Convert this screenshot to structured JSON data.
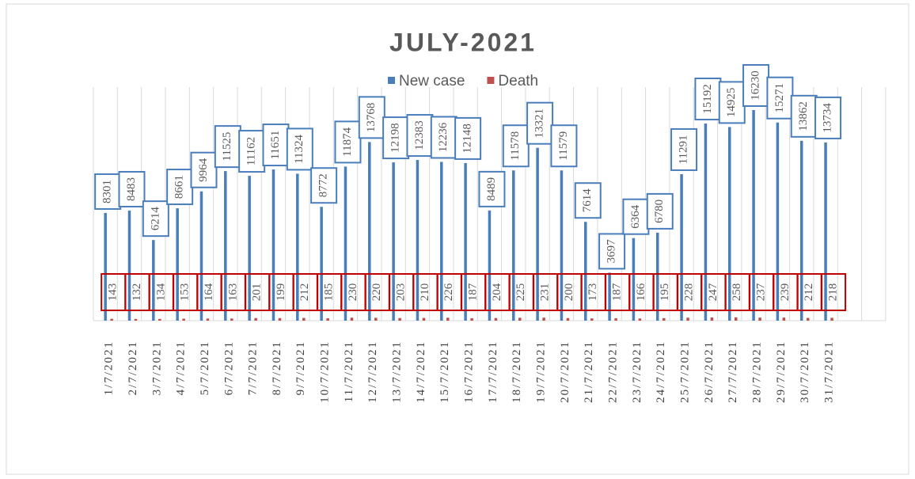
{
  "chart_data": {
    "type": "bar",
    "title": "JULY-2021",
    "categories": [
      "1/7/2021",
      "2/7/2021",
      "3/7/2021",
      "4/7/2021",
      "5/7/2021",
      "6/7/2021",
      "7/7/2021",
      "8/7/2021",
      "9/7/2021",
      "10/7/2021",
      "11/7/2021",
      "12/7/2021",
      "13/7/2021",
      "14/7/2021",
      "15/7/2021",
      "16/7/2021",
      "17/7/2021",
      "18/7/2021",
      "19/7/2021",
      "20/7/2021",
      "21/7/2021",
      "22/7/2021",
      "23/7/2021",
      "24/7/2021",
      "25/7/2021",
      "26/7/2021",
      "27/7/2021",
      "28/7/2021",
      "29/7/2021",
      "30/7/2021",
      "31/7/2021"
    ],
    "series": [
      {
        "name": "New case",
        "color": "#4a7ebb",
        "values": [
          8301,
          8483,
          6214,
          8661,
          9964,
          11525,
          11162,
          11651,
          11324,
          8772,
          11874,
          13768,
          12198,
          12383,
          12236,
          12148,
          8489,
          11578,
          13321,
          11579,
          7614,
          3697,
          6364,
          6780,
          11291,
          15192,
          14925,
          16230,
          15271,
          13862,
          13734
        ]
      },
      {
        "name": "Death",
        "color": "#c0504d",
        "values": [
          143,
          132,
          134,
          153,
          164,
          163,
          201,
          199,
          212,
          185,
          230,
          220,
          203,
          210,
          226,
          187,
          204,
          225,
          231,
          200,
          173,
          187,
          166,
          195,
          228,
          247,
          258,
          237,
          239,
          212,
          218
        ]
      }
    ],
    "ylim": [
      0,
      18000
    ],
    "grid": true,
    "legend": "top"
  }
}
